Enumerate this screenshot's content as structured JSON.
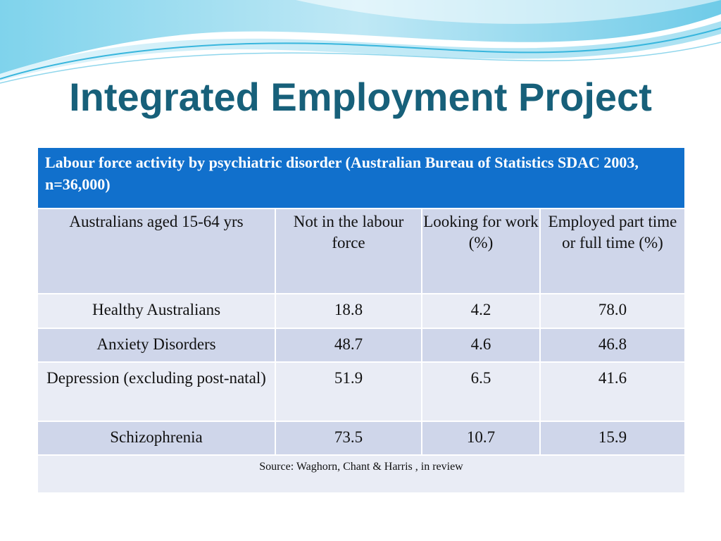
{
  "slide": {
    "title": "Integrated Employment Project"
  },
  "table": {
    "caption": "Labour force activity by psychiatric disorder (Australian Bureau of Statistics SDAC 2003, n=36,000)",
    "headers": [
      "Australians aged 15-64 yrs",
      "Not in the labour force",
      "Looking for work (%)",
      "Employed part time or full time (%)"
    ],
    "rows": [
      [
        "Healthy Australians",
        "18.8",
        "4.2",
        "78.0"
      ],
      [
        "Anxiety Disorders",
        "48.7",
        "4.6",
        "46.8"
      ],
      [
        "Depression (excluding post-natal)",
        "51.9",
        "6.5",
        "41.6"
      ],
      [
        "Schizophrenia",
        "73.5",
        "10.7",
        "15.9"
      ]
    ],
    "source": "Source: Waghorn, Chant & Harris , in review"
  },
  "theme": {
    "title_color": "#17607a",
    "caption_bg": "#1170cc",
    "row_dark": "#cfd6ea",
    "row_light": "#e9ecf5"
  }
}
